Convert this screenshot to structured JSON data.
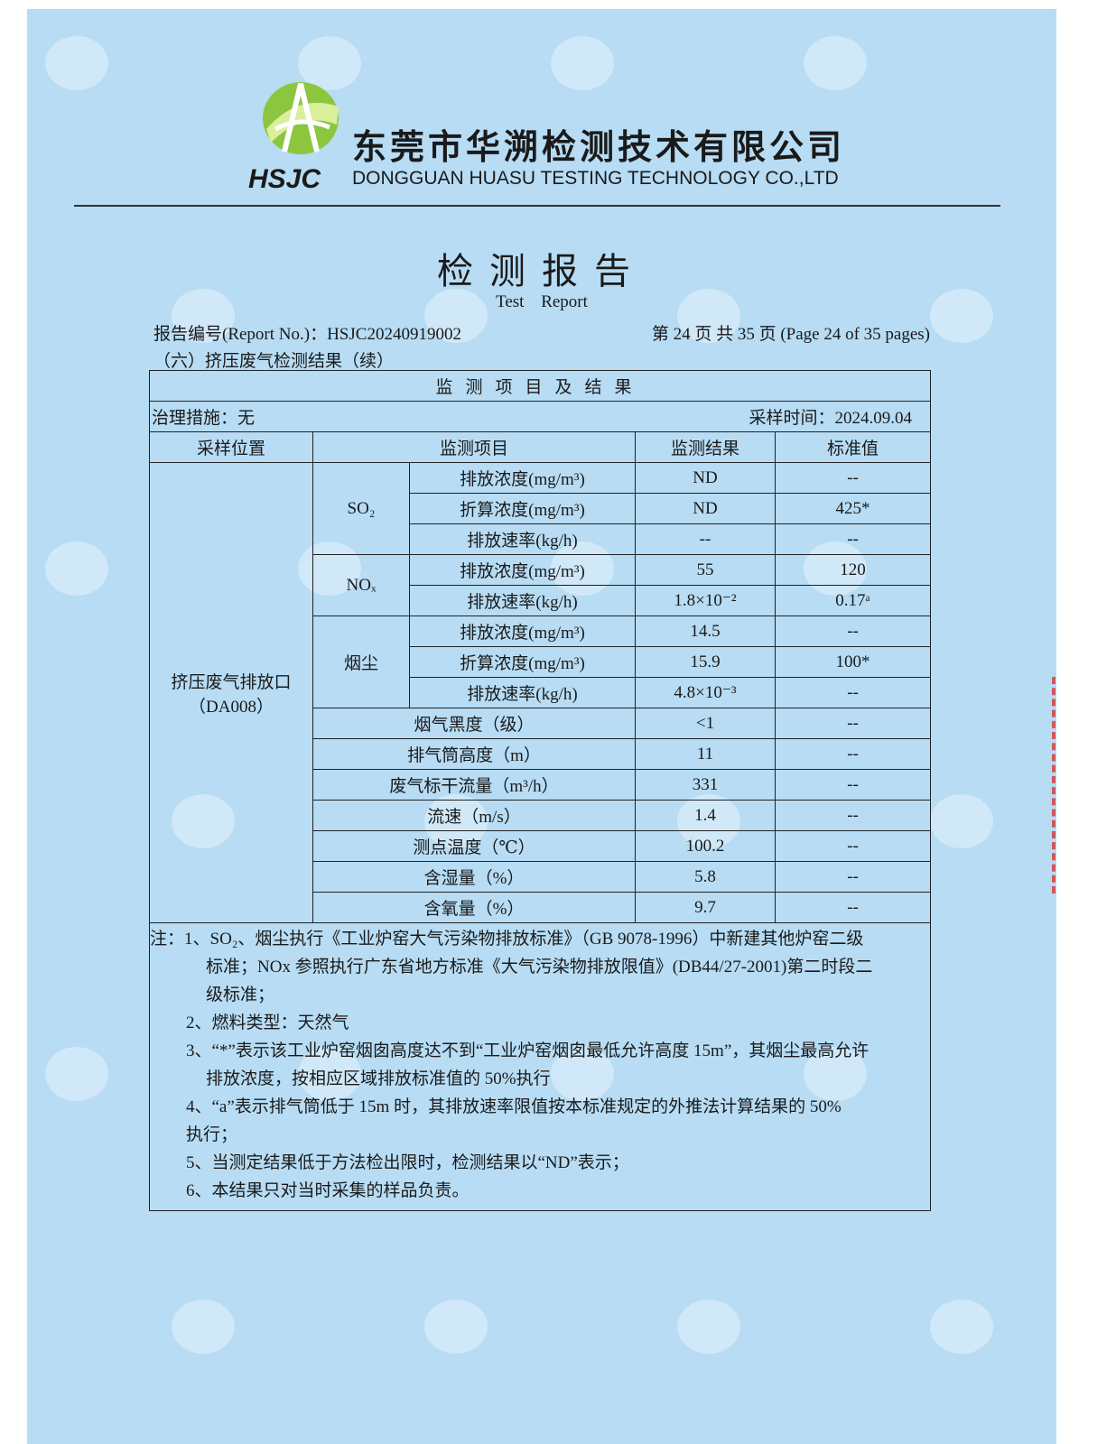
{
  "company": {
    "name_cn": "东莞市华溯检测技术有限公司",
    "name_en": "DONGGUAN HUASU TESTING TECHNOLOGY CO.,LTD",
    "logo_text": "HSJC"
  },
  "watermark": {
    "cn": "东莞市华溯检测技术有限公司",
    "en": "DONGGUAN HUASU TESTING TECHNOLOGY CO.,LTD"
  },
  "report": {
    "title": "检测报告",
    "subtitle": "Test Report",
    "report_no": "报告编号(Report No.)：HSJC20240919002",
    "page": "第 24 页  共 35 页  (Page 24 of 35 pages)",
    "section": "（六）挤压废气检测结果（续）"
  },
  "table": {
    "caption": "监测项目及结果",
    "treatment": "治理措施：无",
    "sampling_time": "采样时间：2024.09.04",
    "headers": [
      "采样位置",
      "监测项目",
      "监测结果",
      "标准值"
    ],
    "location": "挤压废气排放口",
    "location_code": "（DA008）",
    "groups": {
      "so2": "SO₂",
      "nox": "NOₓ",
      "dust": "烟尘"
    },
    "rows": [
      {
        "item": "排放浓度(mg/m³)",
        "result": "ND",
        "standard": "--"
      },
      {
        "item": "折算浓度(mg/m³)",
        "result": "ND",
        "standard": "425*"
      },
      {
        "item": "排放速率(kg/h)",
        "result": "--",
        "standard": "--"
      },
      {
        "item": "排放浓度(mg/m³)",
        "result": "55",
        "standard": "120"
      },
      {
        "item": "排放速率(kg/h)",
        "result": "1.8×10⁻²",
        "standard": "0.17ᵃ"
      },
      {
        "item": "排放浓度(mg/m³)",
        "result": "14.5",
        "standard": "--"
      },
      {
        "item": "折算浓度(mg/m³)",
        "result": "15.9",
        "standard": "100*"
      },
      {
        "item": "排放速率(kg/h)",
        "result": "4.8×10⁻³",
        "standard": "--"
      },
      {
        "item": "烟气黑度（级）",
        "result": "<1",
        "standard": "--"
      },
      {
        "item": "排气筒高度（m）",
        "result": "11",
        "standard": "--"
      },
      {
        "item": "废气标干流量（m³/h）",
        "result": "331",
        "standard": "--"
      },
      {
        "item": "流速（m/s）",
        "result": "1.4",
        "standard": "--"
      },
      {
        "item": "测点温度（℃）",
        "result": "100.2",
        "standard": "--"
      },
      {
        "item": "含湿量（%）",
        "result": "5.8",
        "standard": "--"
      },
      {
        "item": "含氧量（%）",
        "result": "9.7",
        "standard": "--"
      }
    ]
  },
  "notes": {
    "n1a": "注：1、SO₂、烟尘执行《工业炉窑大气污染物排放标准》（GB 9078-1996）中新建其他炉窑二级",
    "n1b": "标准；NOx 参照执行广东省地方标准《大气污染物排放限值》(DB44/27-2001)第二时段二",
    "n1c": "级标准；",
    "n2": "2、燃料类型：天然气",
    "n3a": "3、“*”表示该工业炉窑烟囱高度达不到“工业炉窑烟囱最低允许高度 15m”，其烟尘最高允许",
    "n3b": "排放浓度，按相应区域排放标准值的 50%执行",
    "n4a": "4、“a”表示排气筒低于 15m 时，其排放速率限值按本标准规定的外推法计算结果的 50%",
    "n4b": "执行；",
    "n5": "5、当测定结果低于方法检出限时，检测结果以“ND”表示；",
    "n6": "6、本结果只对当时采集的样品负责。"
  }
}
